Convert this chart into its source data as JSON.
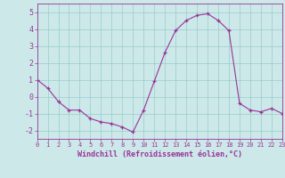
{
  "x": [
    0,
    1,
    2,
    3,
    4,
    5,
    6,
    7,
    8,
    9,
    10,
    11,
    12,
    13,
    14,
    15,
    16,
    17,
    18,
    19,
    20,
    21,
    22,
    23
  ],
  "y": [
    1.0,
    0.5,
    -0.3,
    -0.8,
    -0.8,
    -1.3,
    -1.5,
    -1.6,
    -1.8,
    -2.1,
    -0.8,
    0.9,
    2.6,
    3.9,
    4.5,
    4.8,
    4.9,
    4.5,
    3.9,
    -0.4,
    -0.8,
    -0.9,
    -0.7,
    -1.0
  ],
  "xlabel": "Windchill (Refroidissement éolien,°C)",
  "xlim": [
    0,
    23
  ],
  "ylim": [
    -2.5,
    5.5
  ],
  "yticks": [
    -2,
    -1,
    0,
    1,
    2,
    3,
    4,
    5
  ],
  "xticks": [
    0,
    1,
    2,
    3,
    4,
    5,
    6,
    7,
    8,
    9,
    10,
    11,
    12,
    13,
    14,
    15,
    16,
    17,
    18,
    19,
    20,
    21,
    22,
    23
  ],
  "line_color": "#993399",
  "marker": "+",
  "bg_color": "#cce8e8",
  "grid_color": "#99cccc",
  "tick_color": "#993399",
  "label_color": "#993399",
  "font_name": "monospace"
}
